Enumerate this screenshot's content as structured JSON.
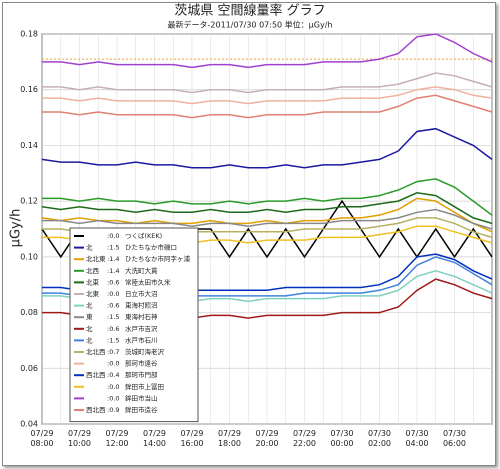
{
  "chart_data": {
    "type": "line",
    "title": "茨城県 空間線量率 グラフ",
    "subtitle": "最新データ-2011/07/30 07:50  単位：μGy/h",
    "y_label": "μGy/h",
    "categories": [
      "07/29 08:00",
      null,
      "07/29 10:00",
      null,
      "07/29 12:00",
      null,
      "07/29 14:00",
      null,
      "07/29 16:00",
      null,
      "07/29 18:00",
      null,
      "07/29 20:00",
      null,
      "07/29 22:00",
      null,
      "07/30 00:00",
      null,
      "07/30 02:00",
      null,
      "07/30 04:00",
      null,
      "07/30 06:00",
      null,
      null
    ],
    "ylim": [
      0.04,
      0.18
    ],
    "yticks": [
      0.04,
      0.06,
      0.08,
      {
        "value": 0.1,
        "label": "0.10"
      },
      0.12,
      0.14,
      0.16,
      0.18
    ],
    "grid": true,
    "reference_line": {
      "value": 0.171,
      "color": "#f0a030"
    },
    "legend": "lower-left",
    "series": [
      {
        "dist": ":0.0",
        "name": "つくば(KEK)",
        "color": "#000000",
        "values": [
          0.11,
          0.1,
          0.11,
          0.1,
          0.11,
          0.1,
          0.11,
          0.1,
          0.11,
          0.11,
          0.1,
          0.11,
          0.1,
          0.11,
          0.1,
          0.11,
          0.12,
          0.11,
          0.1,
          0.11,
          0.1,
          0.11,
          0.1,
          0.11,
          0.1
        ]
      },
      {
        "dir": "北",
        "dist": ":1.5",
        "name": "ひたちなか市磯口",
        "color": "#1a1aa0",
        "values": [
          0.135,
          0.134,
          0.134,
          0.133,
          0.133,
          0.134,
          0.133,
          0.133,
          0.132,
          0.132,
          0.133,
          0.132,
          0.132,
          0.133,
          0.132,
          0.133,
          0.133,
          0.134,
          0.135,
          0.138,
          0.145,
          0.146,
          0.143,
          0.14,
          0.135
        ]
      },
      {
        "dir": "北北東",
        "dist": ":1.4",
        "name": "ひたちなか市阿字ヶ浦",
        "color": "#e0a000",
        "values": [
          0.114,
          0.113,
          0.114,
          0.113,
          0.113,
          0.112,
          0.113,
          0.112,
          0.112,
          0.113,
          0.112,
          0.112,
          0.113,
          0.112,
          0.113,
          0.113,
          0.114,
          0.114,
          0.115,
          0.117,
          0.121,
          0.12,
          0.116,
          0.112,
          0.109
        ]
      },
      {
        "dir": "北西",
        "dist": ":1.4",
        "name": "大洗町大貫",
        "color": "#2a9a2a",
        "values": [
          0.121,
          0.121,
          0.12,
          0.121,
          0.12,
          0.12,
          0.119,
          0.12,
          0.119,
          0.119,
          0.12,
          0.119,
          0.12,
          0.12,
          0.121,
          0.12,
          0.121,
          0.121,
          0.122,
          0.124,
          0.127,
          0.128,
          0.125,
          0.12,
          0.115
        ]
      },
      {
        "dir": "北東",
        "dist": ":0.6",
        "name": "常陸太田市久米",
        "color": "#1a6a1a",
        "values": [
          0.118,
          0.117,
          0.118,
          0.117,
          0.117,
          0.116,
          0.117,
          0.116,
          0.116,
          0.117,
          0.116,
          0.116,
          0.117,
          0.116,
          0.117,
          0.117,
          0.118,
          0.118,
          0.119,
          0.12,
          0.123,
          0.122,
          0.118,
          0.114,
          0.112
        ]
      },
      {
        "dir": "北東",
        "dist": ":0.0",
        "name": "日立市大沼",
        "color": "#c8b0b0",
        "values": [
          0.161,
          0.161,
          0.16,
          0.161,
          0.16,
          0.16,
          0.16,
          0.16,
          0.159,
          0.16,
          0.16,
          0.159,
          0.16,
          0.16,
          0.16,
          0.16,
          0.161,
          0.161,
          0.161,
          0.162,
          0.164,
          0.166,
          0.165,
          0.163,
          0.161
        ]
      },
      {
        "dir": "北",
        "dist": ":0.6",
        "name": "東海村照沼",
        "color": "#80d0c0",
        "values": [
          0.086,
          0.086,
          0.085,
          0.086,
          0.085,
          0.085,
          0.085,
          0.085,
          0.084,
          0.085,
          0.085,
          0.084,
          0.085,
          0.085,
          0.085,
          0.085,
          0.086,
          0.086,
          0.086,
          0.088,
          0.093,
          0.095,
          0.093,
          0.09,
          0.087
        ]
      },
      {
        "dir": "東",
        "dist": ":1.5",
        "name": "東海村石神",
        "color": "#888888",
        "values": [
          0.113,
          0.113,
          0.112,
          0.113,
          0.112,
          0.112,
          0.112,
          0.112,
          0.111,
          0.112,
          0.112,
          0.111,
          0.112,
          0.112,
          0.112,
          0.112,
          0.113,
          0.113,
          0.113,
          0.114,
          0.116,
          0.117,
          0.115,
          0.112,
          0.11
        ]
      },
      {
        "dir": "北",
        "dist": ":0.6",
        "name": "水戸市吉沢",
        "color": "#a01818",
        "values": [
          0.08,
          0.08,
          0.079,
          0.08,
          0.079,
          0.079,
          0.079,
          0.079,
          0.078,
          0.079,
          0.079,
          0.078,
          0.079,
          0.079,
          0.079,
          0.079,
          0.08,
          0.08,
          0.08,
          0.082,
          0.088,
          0.092,
          0.09,
          0.087,
          0.085
        ]
      },
      {
        "dir": "北",
        "dist": ":1.5",
        "name": "水戸市石川",
        "color": "#4080e0",
        "values": [
          0.087,
          0.087,
          0.086,
          0.087,
          0.086,
          0.086,
          0.086,
          0.086,
          0.086,
          0.086,
          0.086,
          0.086,
          0.086,
          0.086,
          0.087,
          0.087,
          0.087,
          0.087,
          0.088,
          0.09,
          0.097,
          0.1,
          0.098,
          0.094,
          0.09
        ]
      },
      {
        "dir": "北北西",
        "dist": ":0.7",
        "name": "茨城町海老沢",
        "color": "#b8b060",
        "values": [
          0.11,
          0.11,
          0.109,
          0.11,
          0.109,
          0.109,
          0.109,
          0.109,
          0.109,
          0.109,
          0.109,
          0.109,
          0.109,
          0.109,
          0.11,
          0.11,
          0.11,
          0.11,
          0.111,
          0.112,
          0.114,
          0.114,
          0.112,
          0.109,
          0.107
        ]
      },
      {
        "dist": ":0.0",
        "name": "那珂市遠谷",
        "color": "#f0b0a0",
        "values": [
          0.157,
          0.157,
          0.156,
          0.157,
          0.156,
          0.156,
          0.156,
          0.156,
          0.155,
          0.156,
          0.156,
          0.155,
          0.156,
          0.156,
          0.156,
          0.156,
          0.157,
          0.157,
          0.157,
          0.158,
          0.16,
          0.161,
          0.16,
          0.158,
          0.157
        ]
      },
      {
        "dir": "西北西",
        "dist": ":0.4",
        "name": "那珂市門部",
        "color": "#0030c0",
        "values": [
          0.089,
          0.089,
          0.088,
          0.089,
          0.088,
          0.088,
          0.088,
          0.088,
          0.088,
          0.088,
          0.088,
          0.088,
          0.088,
          0.089,
          0.089,
          0.089,
          0.089,
          0.089,
          0.09,
          0.093,
          0.1,
          0.101,
          0.099,
          0.095,
          0.092
        ]
      },
      {
        "dist": ":0.0",
        "name": "鉾田市上冨田",
        "color": "#f0c020",
        "values": [
          0.107,
          0.107,
          0.106,
          0.107,
          0.106,
          0.106,
          0.106,
          0.106,
          0.105,
          0.106,
          0.106,
          0.105,
          0.106,
          0.106,
          0.106,
          0.107,
          0.107,
          0.107,
          0.108,
          0.109,
          0.111,
          0.111,
          0.109,
          0.107,
          0.105
        ]
      },
      {
        "dist": ":0.0",
        "name": "鉾田市当山",
        "color": "#a040d0",
        "values": [
          0.17,
          0.17,
          0.169,
          0.17,
          0.169,
          0.169,
          0.169,
          0.169,
          0.168,
          0.169,
          0.169,
          0.168,
          0.169,
          0.169,
          0.169,
          0.17,
          0.17,
          0.17,
          0.171,
          0.173,
          0.179,
          0.18,
          0.177,
          0.173,
          0.17
        ]
      },
      {
        "dir": "西北西",
        "dist": ":0.9",
        "name": "鉾田市造谷",
        "color": "#e08070",
        "values": [
          0.152,
          0.152,
          0.151,
          0.152,
          0.151,
          0.151,
          0.151,
          0.151,
          0.15,
          0.151,
          0.151,
          0.15,
          0.151,
          0.151,
          0.151,
          0.152,
          0.152,
          0.152,
          0.152,
          0.154,
          0.157,
          0.158,
          0.156,
          0.154,
          0.152
        ]
      }
    ]
  }
}
